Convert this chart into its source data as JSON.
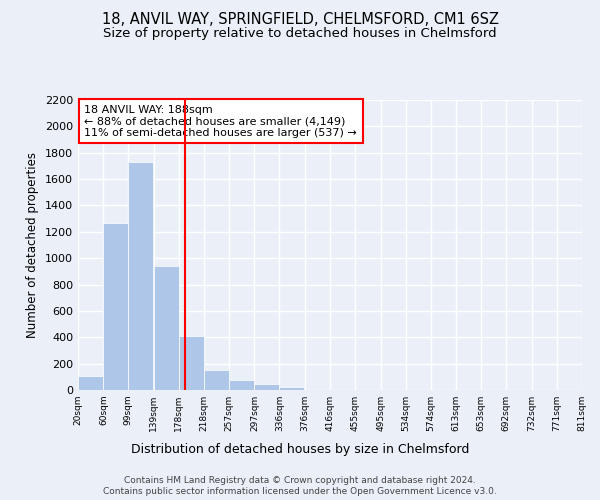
{
  "title_line1": "18, ANVIL WAY, SPRINGFIELD, CHELMSFORD, CM1 6SZ",
  "title_line2": "Size of property relative to detached houses in Chelmsford",
  "xlabel": "Distribution of detached houses by size in Chelmsford",
  "ylabel": "Number of detached properties",
  "footer_line1": "Contains HM Land Registry data © Crown copyright and database right 2024.",
  "footer_line2": "Contains public sector information licensed under the Open Government Licence v3.0.",
  "annotation_line1": "18 ANVIL WAY: 188sqm",
  "annotation_line2": "← 88% of detached houses are smaller (4,149)",
  "annotation_line3": "11% of semi-detached houses are larger (537) →",
  "bar_left_edges": [
    20,
    60,
    99,
    139,
    178,
    218,
    257,
    297,
    336,
    376,
    416,
    455,
    495,
    534,
    574,
    613,
    653,
    692,
    732,
    771
  ],
  "bar_widths": [
    39,
    39,
    39,
    39,
    39,
    39,
    39,
    39,
    39,
    39,
    39,
    39,
    39,
    39,
    39,
    39,
    39,
    39,
    39,
    39
  ],
  "bar_heights": [
    110,
    1265,
    1730,
    940,
    410,
    155,
    75,
    45,
    25,
    0,
    0,
    0,
    0,
    0,
    0,
    0,
    0,
    0,
    0,
    0
  ],
  "tick_labels": [
    "20sqm",
    "60sqm",
    "99sqm",
    "139sqm",
    "178sqm",
    "218sqm",
    "257sqm",
    "297sqm",
    "336sqm",
    "376sqm",
    "416sqm",
    "455sqm",
    "495sqm",
    "534sqm",
    "574sqm",
    "613sqm",
    "653sqm",
    "692sqm",
    "732sqm",
    "771sqm",
    "811sqm"
  ],
  "tick_positions": [
    20,
    60,
    99,
    139,
    178,
    218,
    257,
    297,
    336,
    376,
    416,
    455,
    495,
    534,
    574,
    613,
    653,
    692,
    732,
    771,
    811
  ],
  "bar_color": "#aec6e8",
  "redline_x": 188,
  "ylim": [
    0,
    2200
  ],
  "xlim": [
    20,
    811
  ],
  "yticks": [
    0,
    200,
    400,
    600,
    800,
    1000,
    1200,
    1400,
    1600,
    1800,
    2000,
    2200
  ],
  "bg_color": "#eaeff8",
  "plot_bg_color": "#eaeff8",
  "grid_color": "#ffffff",
  "title_fontsize": 10.5,
  "subtitle_fontsize": 9.5,
  "annotation_fontsize": 8
}
